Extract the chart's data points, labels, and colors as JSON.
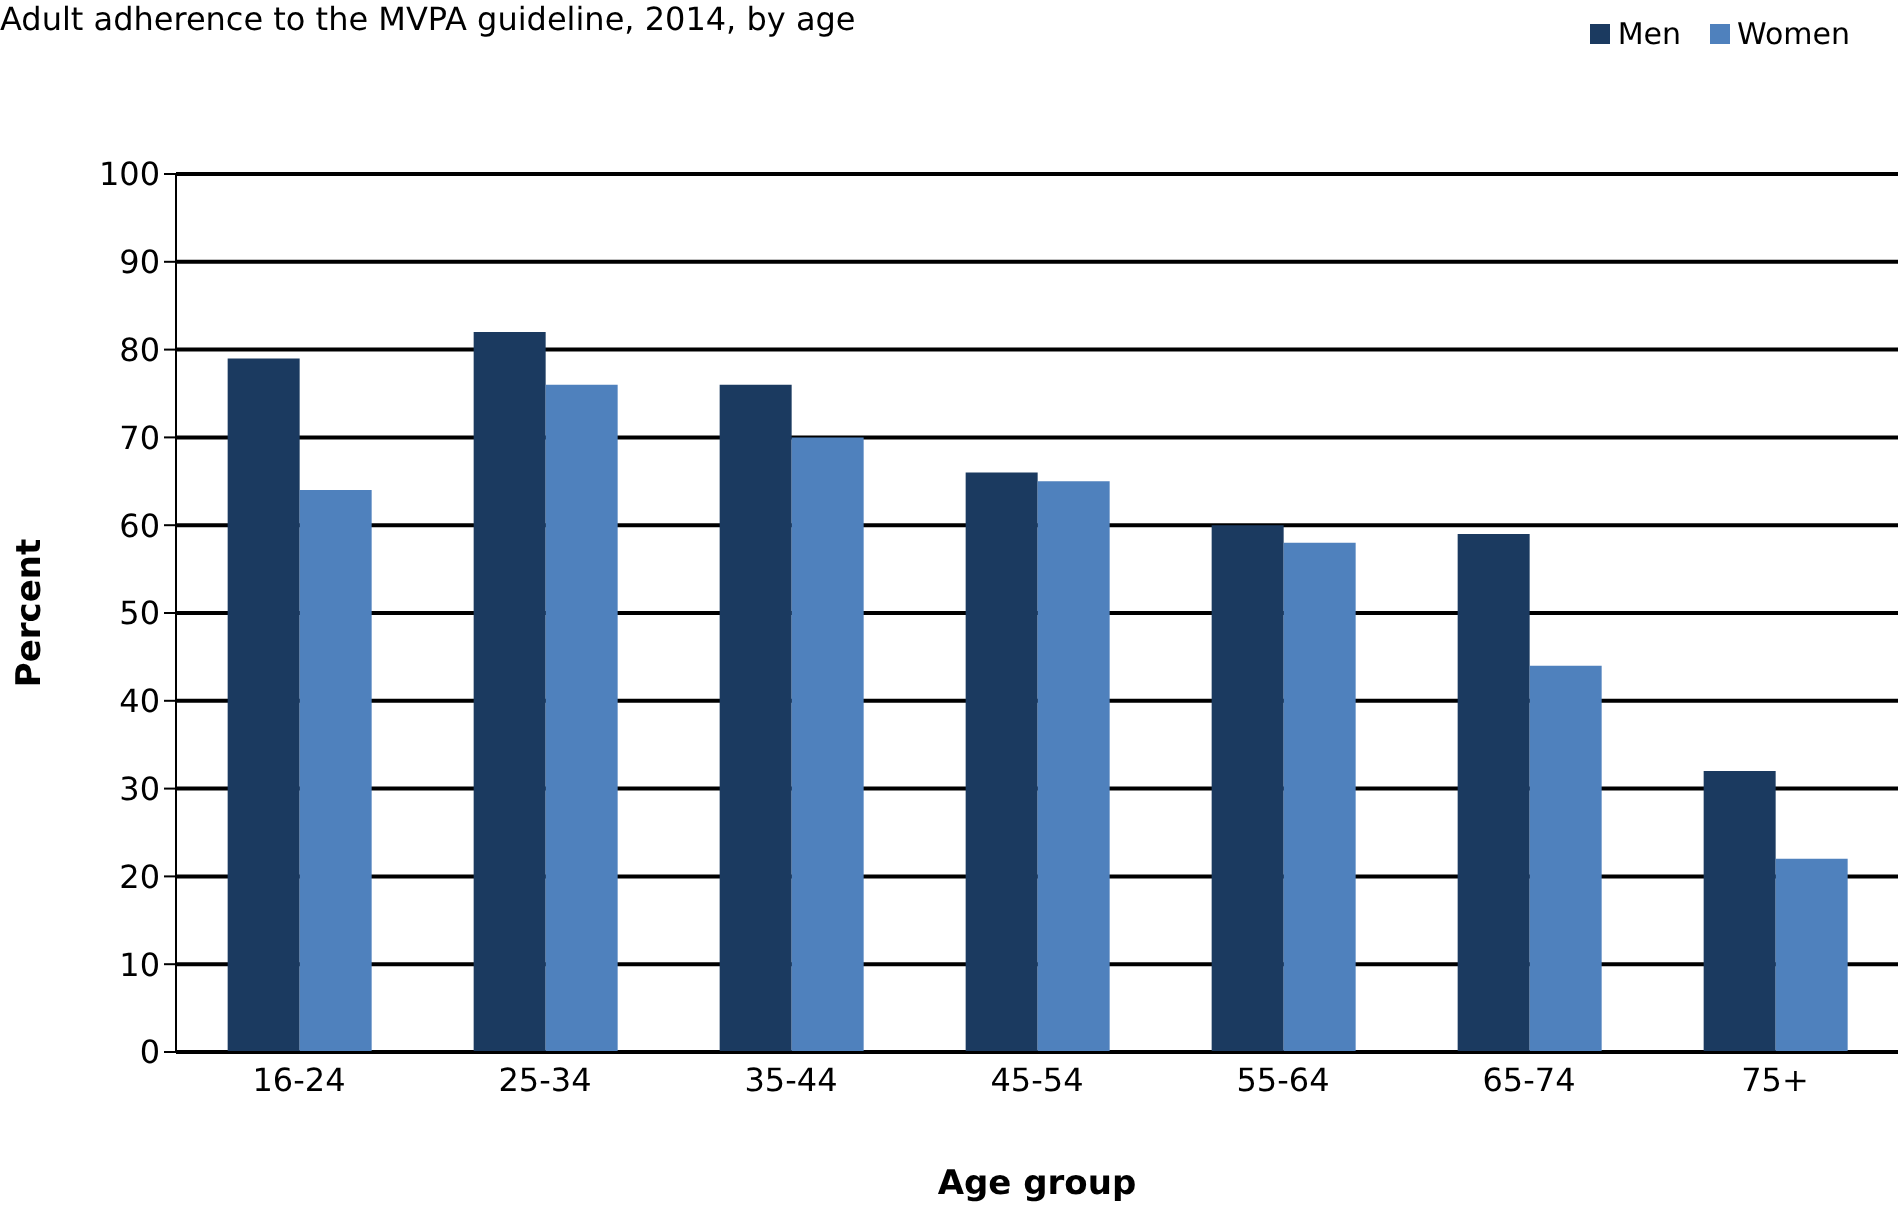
{
  "chart_data": {
    "type": "bar",
    "title": "Adult adherence to the MVPA guideline, 2014, by age",
    "xlabel": "Age group",
    "ylabel": "Percent",
    "categories": [
      "16-24",
      "25-34",
      "35-44",
      "45-54",
      "55-64",
      "65-74",
      "75+"
    ],
    "series": [
      {
        "name": "Men",
        "color": "#1b3a60",
        "values": [
          79,
          82,
          76,
          66,
          60,
          59,
          32
        ]
      },
      {
        "name": "Women",
        "color": "#4f81bd",
        "values": [
          64,
          76,
          70,
          65,
          58,
          44,
          22
        ]
      }
    ],
    "ylim": [
      0,
      100
    ],
    "yticks": [
      0,
      10,
      20,
      30,
      40,
      50,
      60,
      70,
      80,
      90,
      100
    ],
    "grid": "y",
    "legend": "top right"
  }
}
